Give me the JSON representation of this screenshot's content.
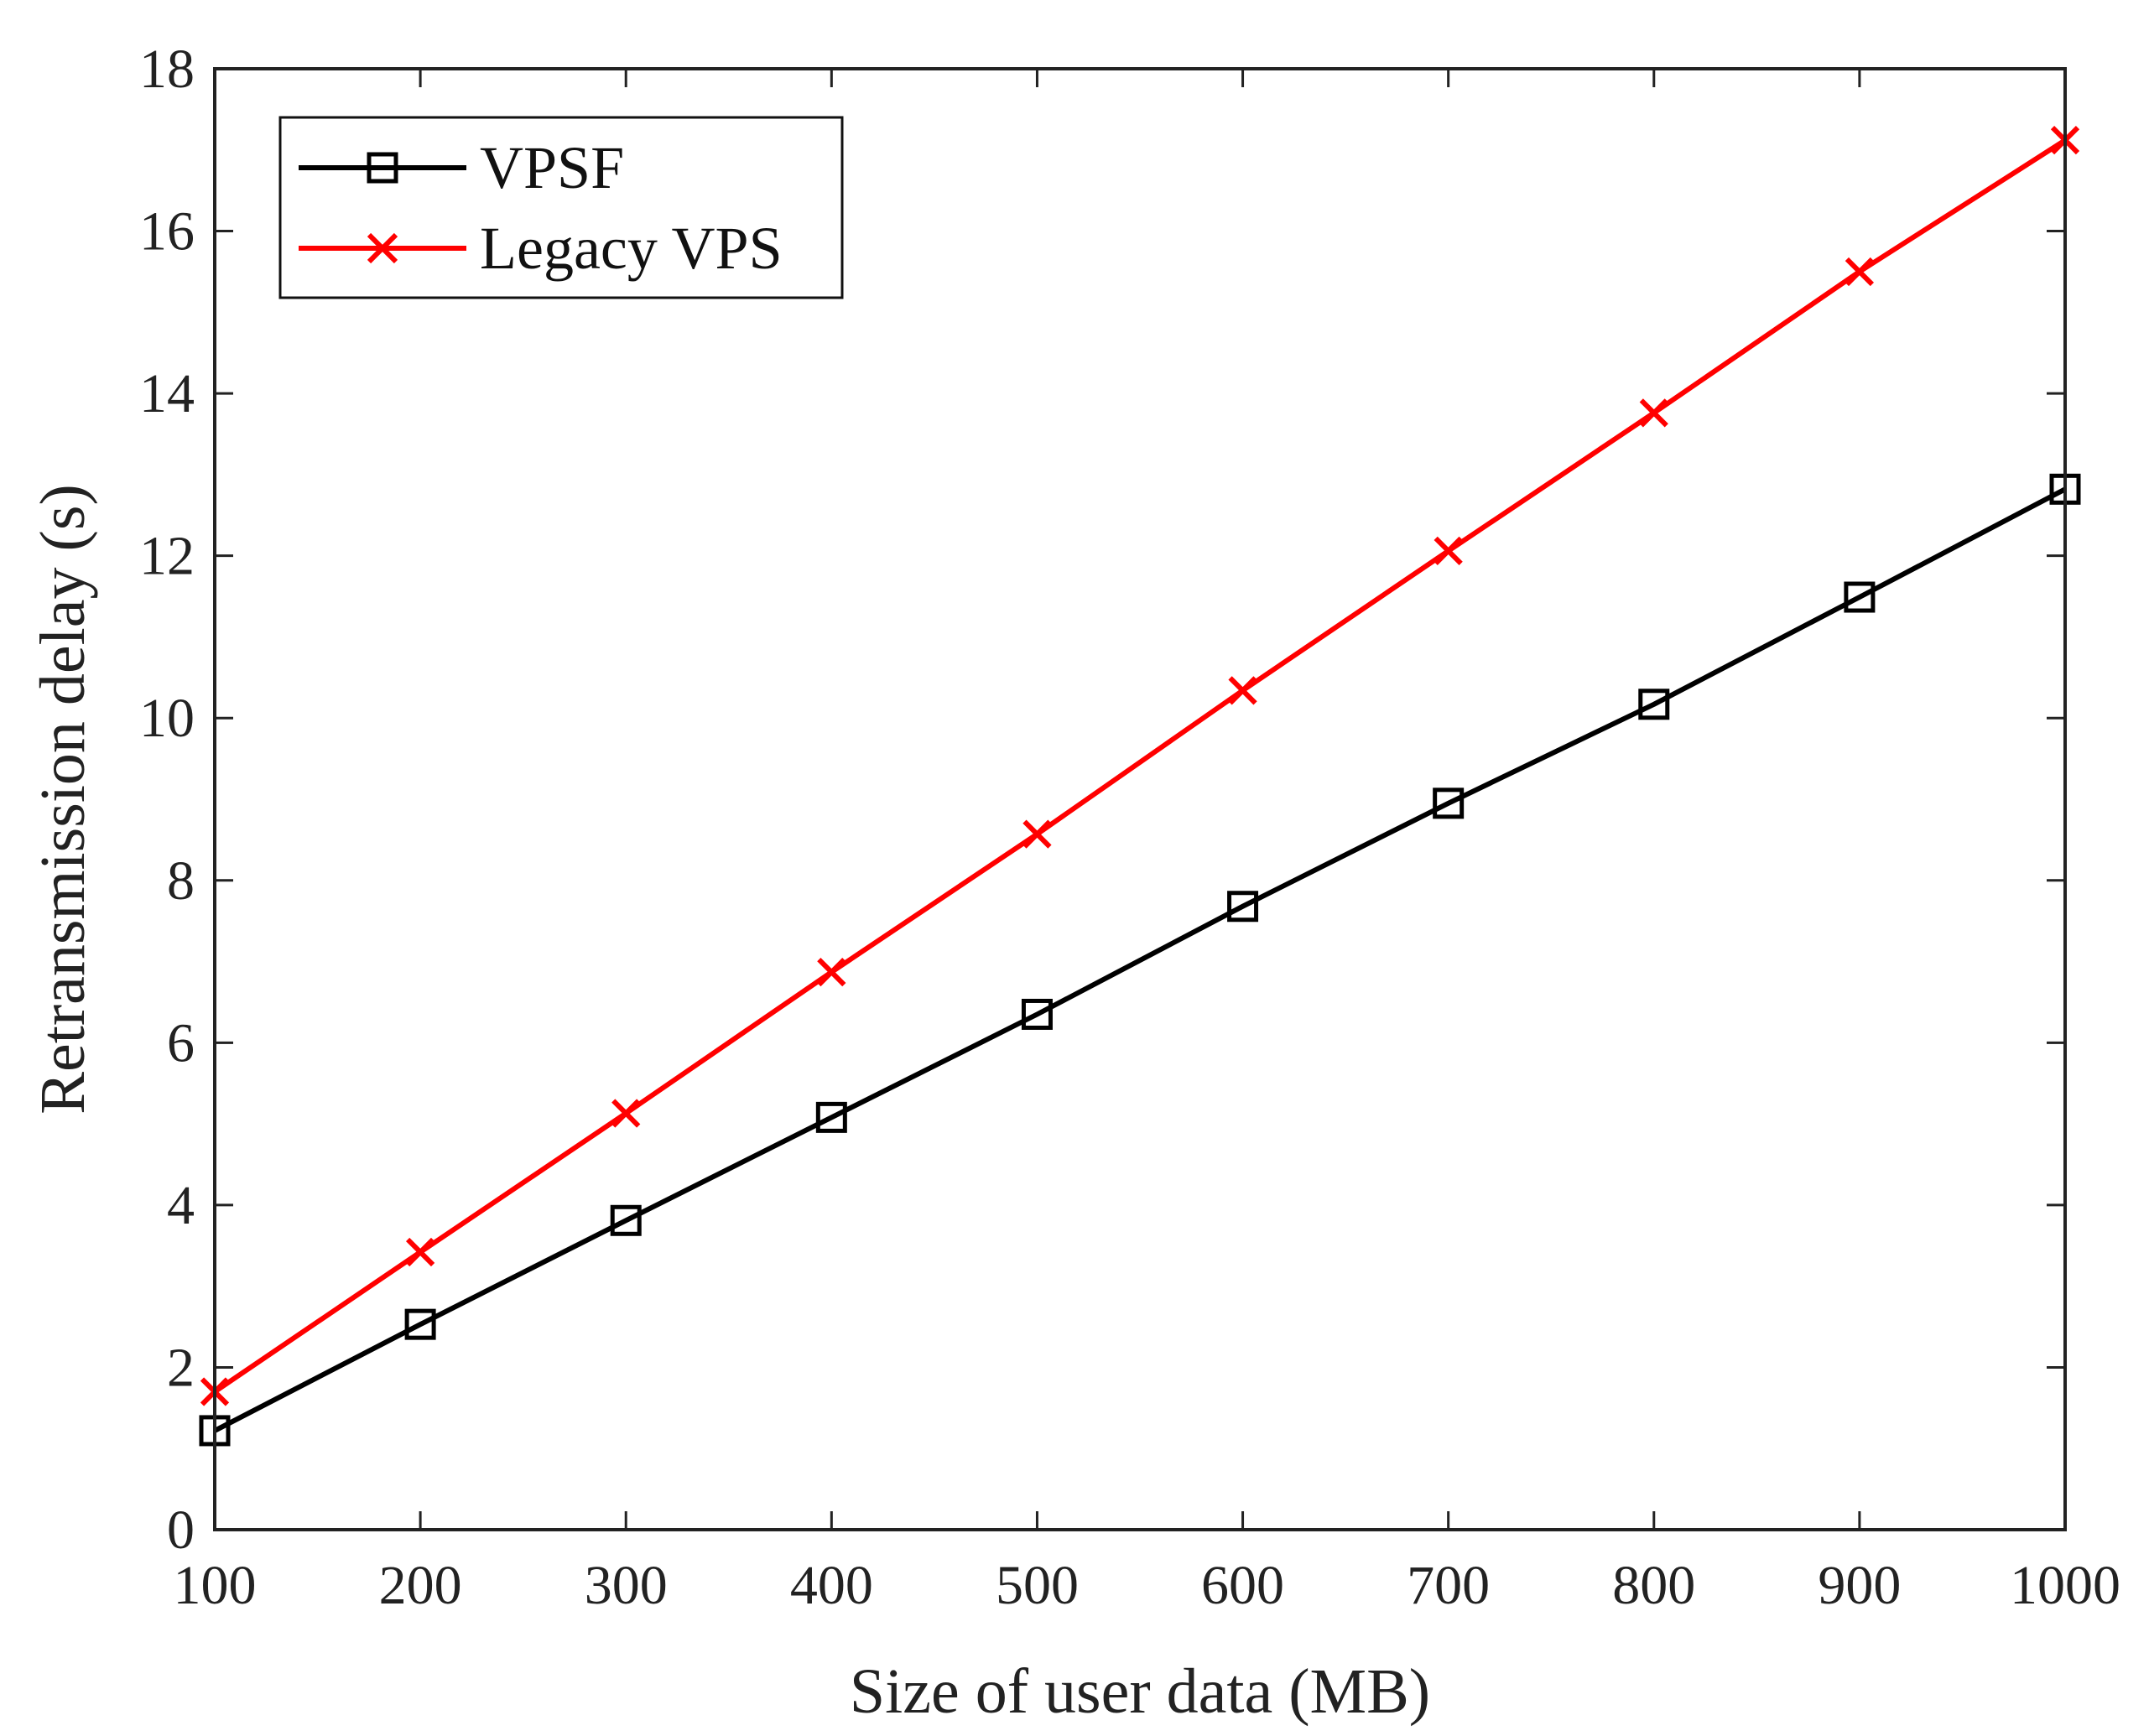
{
  "chart_data": {
    "type": "line",
    "title": "",
    "xlabel": "Size of user data (MB)",
    "ylabel": "Retransmission delay (s)",
    "xlim": [
      100,
      1000
    ],
    "ylim": [
      0,
      18
    ],
    "x": [
      100,
      200,
      300,
      400,
      500,
      600,
      700,
      800,
      900,
      1000
    ],
    "xticks": [
      "100",
      "200",
      "300",
      "400",
      "500",
      "600",
      "700",
      "800",
      "900",
      "1000"
    ],
    "yticks": [
      "0",
      "2",
      "4",
      "6",
      "8",
      "10",
      "12",
      "14",
      "16",
      "18"
    ],
    "legend_position": "top-left",
    "grid": false,
    "series": [
      {
        "name": "VPSF",
        "marker": "square",
        "color": "#000000",
        "values": [
          1.22,
          2.53,
          3.81,
          5.08,
          6.35,
          7.68,
          8.95,
          10.17,
          11.49,
          12.82
        ]
      },
      {
        "name": "Legacy VPS",
        "marker": "x",
        "color": "#ff0000",
        "values": [
          1.7,
          3.42,
          5.13,
          6.87,
          8.57,
          10.34,
          12.06,
          13.76,
          15.5,
          17.12
        ]
      }
    ]
  }
}
